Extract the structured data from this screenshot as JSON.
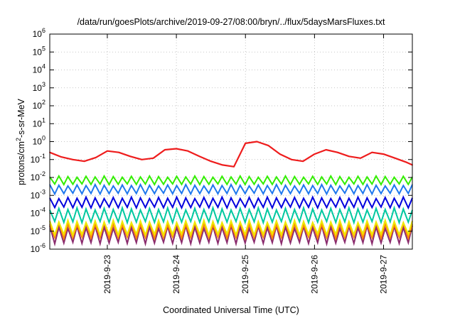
{
  "chart_data": {
    "type": "line",
    "title": "/data/run/goesPlots/archive/2019-09-27/08:00/bryn/../flux/5daysMarsFluxes.txt",
    "xlabel": "Coordinated Universal Time (UTC)",
    "ylabel": {
      "prefix": "protons/cm",
      "sup": "2",
      "suffix": "-s-sr-MeV"
    },
    "y_scale": "log",
    "ylim": [
      1e-06,
      1000000.0
    ],
    "y_ticks": [
      {
        "base": "10",
        "exp": "-6"
      },
      {
        "base": "10",
        "exp": "-5"
      },
      {
        "base": "10",
        "exp": "-4"
      },
      {
        "base": "10",
        "exp": "-3"
      },
      {
        "base": "10",
        "exp": "-2"
      },
      {
        "base": "10",
        "exp": "-1"
      },
      {
        "base": "10",
        "exp": "0"
      },
      {
        "base": "10",
        "exp": "1"
      },
      {
        "base": "10",
        "exp": "2"
      },
      {
        "base": "10",
        "exp": "3"
      },
      {
        "base": "10",
        "exp": "4"
      },
      {
        "base": "10",
        "exp": "5"
      },
      {
        "base": "10",
        "exp": "6"
      }
    ],
    "xlim": [
      "2019-09-22 04:00",
      "2019-09-27 10:00"
    ],
    "x_ticks": [
      "2019-9-23",
      "2019-9-24",
      "2019-9-25",
      "2019-9-26",
      "2019-9-27"
    ],
    "grid": true,
    "legend": "none",
    "series": [
      {
        "color": "#ee1c1c",
        "x": [
          "2019-09-22 04:00",
          "2019-09-22 08:00",
          "2019-09-22 12:00",
          "2019-09-22 16:00",
          "2019-09-22 20:00",
          "2019-09-23 00:00",
          "2019-09-23 04:00",
          "2019-09-23 08:00",
          "2019-09-23 12:00",
          "2019-09-23 16:00",
          "2019-09-23 20:00",
          "2019-09-24 00:00",
          "2019-09-24 04:00",
          "2019-09-24 08:00",
          "2019-09-24 12:00",
          "2019-09-24 16:00",
          "2019-09-24 20:00",
          "2019-09-25 00:00",
          "2019-09-25 04:00",
          "2019-09-25 08:00",
          "2019-09-25 12:00",
          "2019-09-25 16:00",
          "2019-09-25 20:00",
          "2019-09-26 00:00",
          "2019-09-26 04:00",
          "2019-09-26 08:00",
          "2019-09-26 12:00",
          "2019-09-26 16:00",
          "2019-09-26 20:00",
          "2019-09-27 00:00",
          "2019-09-27 04:00",
          "2019-09-27 08:00",
          "2019-09-27 10:00"
        ],
        "y": [
          0.25,
          0.14,
          0.1,
          0.08,
          0.13,
          0.3,
          0.25,
          0.15,
          0.1,
          0.12,
          0.35,
          0.4,
          0.3,
          0.15,
          0.08,
          0.05,
          0.04,
          0.8,
          1.0,
          0.6,
          0.2,
          0.1,
          0.08,
          0.2,
          0.35,
          0.25,
          0.15,
          0.12,
          0.25,
          0.2,
          0.12,
          0.07,
          0.05
        ]
      },
      {
        "color": "#33ee00",
        "band": [
          0.004,
          0.012
        ],
        "sawtooth": true
      },
      {
        "color": "#1e78ee",
        "band": [
          0.0012,
          0.004
        ],
        "sawtooth": true
      },
      {
        "color": "#0000dd",
        "band": [
          0.0002,
          0.0008
        ],
        "sawtooth": true
      },
      {
        "color": "#00c8a0",
        "band": [
          3e-05,
          0.0002
        ],
        "sawtooth": true
      },
      {
        "color": "#f0e800",
        "band": [
          6e-06,
          4e-05
        ],
        "sawtooth": true
      },
      {
        "color": "#ff8800",
        "band": [
          4e-06,
          3e-05
        ],
        "sawtooth": true
      },
      {
        "color": "#8b2c6e",
        "band": [
          2e-06,
          2e-05
        ],
        "sawtooth": true
      }
    ]
  }
}
